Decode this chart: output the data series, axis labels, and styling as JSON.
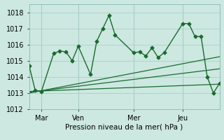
{
  "xlabel": "Pression niveau de la mer( hPa )",
  "background_color": "#cce8e0",
  "grid_color": "#aacfc8",
  "line_color": "#1a6b30",
  "ylim": [
    1012,
    1018.5
  ],
  "xlim": [
    0,
    31
  ],
  "xtick_positions": [
    2,
    8,
    17,
    25
  ],
  "xtick_labels": [
    "Mar",
    "Ven",
    "Mer",
    "Jeu"
  ],
  "ytick_positions": [
    1012,
    1013,
    1014,
    1015,
    1016,
    1017,
    1018
  ],
  "vlines": [
    2,
    8,
    17,
    25
  ],
  "series1_x": [
    0,
    1,
    2,
    4,
    5,
    6,
    7,
    8,
    10,
    11,
    12,
    13,
    14,
    17,
    18,
    19,
    20,
    21,
    22,
    25,
    26,
    27,
    28,
    29,
    30,
    31
  ],
  "series1_y": [
    1014.7,
    1013.15,
    1013.1,
    1015.45,
    1015.6,
    1015.55,
    1015.0,
    1015.9,
    1014.15,
    1016.2,
    1017.0,
    1017.8,
    1016.6,
    1015.5,
    1015.55,
    1015.3,
    1015.8,
    1015.2,
    1015.5,
    1017.3,
    1017.3,
    1016.5,
    1016.5,
    1014.0,
    1013.0,
    1013.6
  ],
  "series2_x": [
    0,
    31
  ],
  "series2_y": [
    1013.1,
    1013.55
  ],
  "series3_x": [
    0,
    31
  ],
  "series3_y": [
    1013.05,
    1014.5
  ],
  "series4_x": [
    0,
    31
  ],
  "series4_y": [
    1013.0,
    1015.25
  ]
}
